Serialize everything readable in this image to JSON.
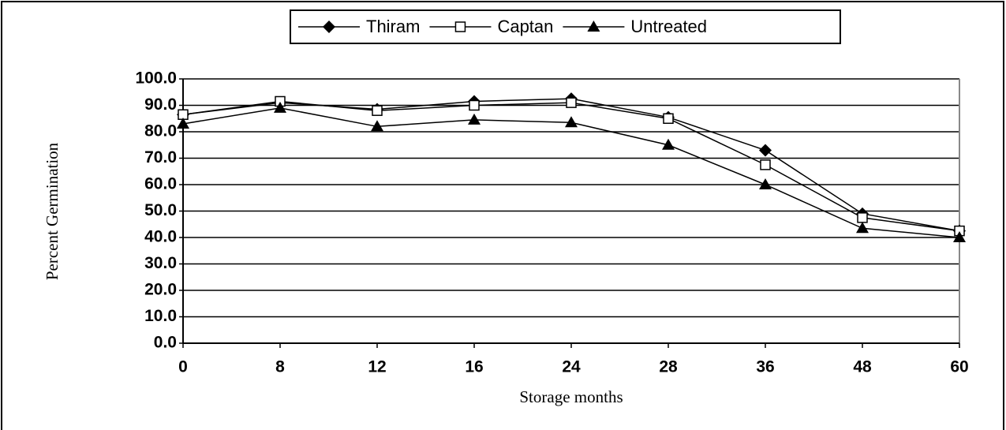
{
  "chart_data": {
    "type": "line",
    "x_label": "Storage months",
    "y_label": "Percent Germination",
    "categories": [
      "0",
      "8",
      "12",
      "16",
      "24",
      "28",
      "36",
      "48",
      "60"
    ],
    "series": [
      {
        "name": "Thiram",
        "color": "#000000",
        "marker": "diamond",
        "values": [
          86.5,
          91,
          88.5,
          91.5,
          92.5,
          85.5,
          73,
          49,
          42.5
        ]
      },
      {
        "name": "Captan",
        "color": "#000000",
        "marker": "square-open",
        "values": [
          86.5,
          91.5,
          88,
          90,
          91,
          85,
          67.5,
          47.5,
          42.5
        ]
      },
      {
        "name": "Untreated",
        "color": "#000000",
        "marker": "triangle",
        "values": [
          83,
          89,
          82,
          84.5,
          83.5,
          75,
          60,
          43.5,
          40
        ]
      }
    ],
    "ylim": [
      0,
      100
    ],
    "yticks": [
      {
        "value": 0,
        "label": "0.0"
      },
      {
        "value": 10,
        "label": "10.0"
      },
      {
        "value": 20,
        "label": "20.0"
      },
      {
        "value": 30,
        "label": "30.0"
      },
      {
        "value": 40,
        "label": "40.0"
      },
      {
        "value": 50,
        "label": "50.0"
      },
      {
        "value": 60,
        "label": "60.0"
      },
      {
        "value": 70,
        "label": "70.0"
      },
      {
        "value": 80,
        "label": "80.0"
      },
      {
        "value": 90,
        "label": "90.0"
      },
      {
        "value": 100,
        "label": "100.0"
      }
    ],
    "grid": true,
    "legend": "top"
  }
}
